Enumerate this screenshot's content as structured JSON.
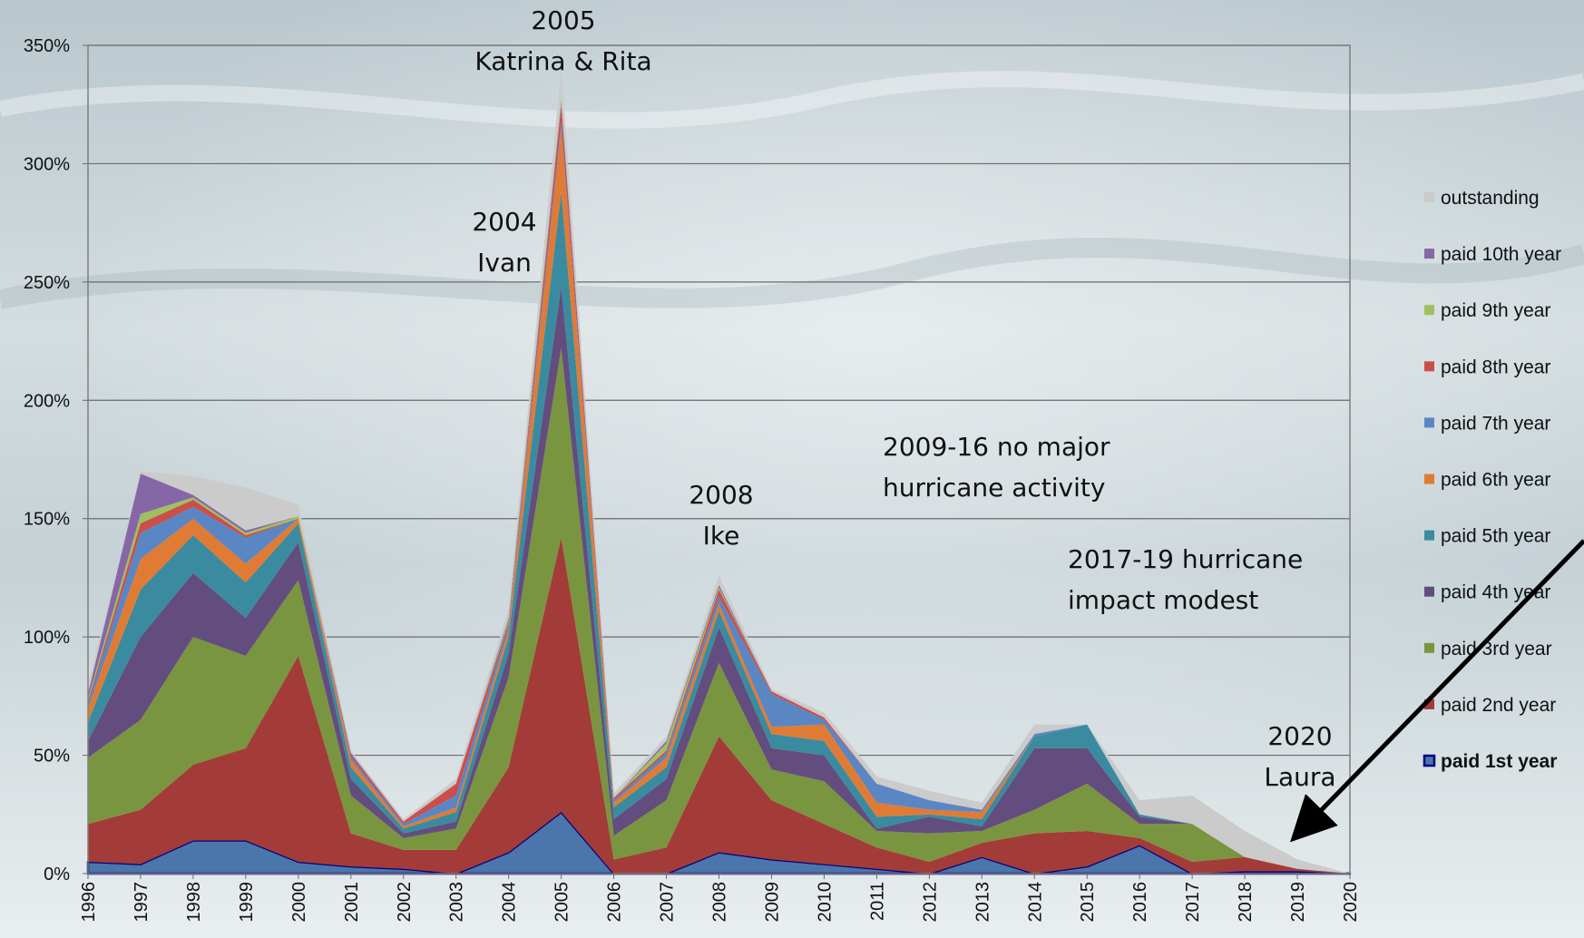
{
  "chart_data": {
    "type": "stacked-area",
    "categories": [
      "1996",
      "1997",
      "1998",
      "1999",
      "2000",
      "2001",
      "2002",
      "2003",
      "2004",
      "2005",
      "2006",
      "2007",
      "2008",
      "2009",
      "2010",
      "2011",
      "2012",
      "2013",
      "2014",
      "2015",
      "2016",
      "2017",
      "2018",
      "2019",
      "2020"
    ],
    "ylim": [
      0,
      350
    ],
    "yticks": [
      {
        "value": 0,
        "label": "0%"
      },
      {
        "value": 50,
        "label": "50%"
      },
      {
        "value": 100,
        "label": "100%"
      },
      {
        "value": 150,
        "label": "150%"
      },
      {
        "value": 200,
        "label": "200%"
      },
      {
        "value": 250,
        "label": "250%"
      },
      {
        "value": 300,
        "label": "300%"
      },
      {
        "value": 350,
        "label": "350%"
      }
    ],
    "grid": true,
    "legend": "right",
    "series": [
      {
        "name": "paid 1st year",
        "color": "#4a76ab",
        "values": [
          5,
          4,
          14,
          14,
          5,
          3,
          2,
          0,
          9,
          26,
          0,
          0,
          9,
          6,
          4,
          2,
          0,
          7,
          0,
          3,
          12,
          0,
          1,
          1,
          0
        ]
      },
      {
        "name": "paid 2nd year",
        "color": "#a33c38",
        "values": [
          16,
          23,
          32,
          39,
          87,
          14,
          8,
          10,
          36,
          116,
          6,
          11,
          49,
          25,
          17,
          9,
          5,
          6,
          17,
          15,
          3,
          5,
          6,
          1,
          0
        ]
      },
      {
        "name": "paid 3rd year",
        "color": "#7a953f",
        "values": [
          28,
          38,
          54,
          39,
          32,
          16,
          5,
          9,
          38,
          80,
          10,
          20,
          31,
          13,
          18,
          7,
          12,
          5,
          10,
          20,
          6,
          16,
          0,
          0,
          0
        ]
      },
      {
        "name": "paid 4th year",
        "color": "#634d7e",
        "values": [
          7,
          35,
          27,
          16,
          16,
          7,
          2,
          3,
          10,
          26,
          7,
          9,
          15,
          9,
          11,
          1,
          7,
          2,
          26,
          15,
          3,
          0,
          0,
          0,
          0
        ]
      },
      {
        "name": "paid 5th year",
        "color": "#3a8b9f",
        "values": [
          8,
          20,
          16,
          15,
          8,
          5,
          2,
          4,
          7,
          40,
          5,
          5,
          7,
          6,
          6,
          5,
          1,
          3,
          5,
          10,
          1,
          0,
          0,
          0,
          0
        ]
      },
      {
        "name": "paid 6th year",
        "color": "#e07b35",
        "values": [
          6,
          13,
          7,
          8,
          2,
          3,
          1,
          2,
          3,
          27,
          2,
          4,
          3,
          3,
          7,
          6,
          2,
          3,
          0,
          0,
          0,
          0,
          0,
          0,
          0
        ]
      },
      {
        "name": "paid 7th year",
        "color": "#5a86c4",
        "values": [
          2,
          11,
          5,
          11,
          0,
          1,
          1,
          5,
          2,
          3,
          1,
          2,
          3,
          14,
          2,
          8,
          4,
          1,
          1,
          0,
          0,
          0,
          0,
          0,
          0
        ]
      },
      {
        "name": "paid 8th year",
        "color": "#cc4e4b",
        "values": [
          1,
          4,
          3,
          1,
          0,
          1,
          1,
          5,
          1,
          7,
          1,
          1,
          3,
          1,
          1,
          0,
          0,
          0,
          0,
          0,
          0,
          0,
          0,
          0,
          0
        ]
      },
      {
        "name": "paid 9th year",
        "color": "#a0c060",
        "values": [
          1,
          4,
          1,
          1,
          1,
          0,
          0,
          0,
          1,
          1,
          0,
          3,
          1,
          0,
          0,
          0,
          0,
          0,
          0,
          0,
          0,
          0,
          0,
          0,
          0
        ]
      },
      {
        "name": "paid 10th year",
        "color": "#8567a8",
        "values": [
          2,
          17,
          1,
          1,
          0,
          1,
          0,
          0,
          1,
          1,
          0,
          1,
          1,
          0,
          0,
          0,
          0,
          0,
          0,
          0,
          0,
          0,
          0,
          0,
          0
        ]
      },
      {
        "name": "outstanding",
        "color": "#cbcbcb",
        "values": [
          4,
          1,
          8,
          18,
          5,
          1,
          1,
          2,
          4,
          13,
          2,
          2,
          4,
          1,
          2,
          3,
          4,
          3,
          4,
          0,
          6,
          12,
          11,
          4,
          0
        ]
      }
    ],
    "annotations": [
      {
        "lines": [
          "2005",
          "Katrina & Rita"
        ]
      },
      {
        "lines": [
          "2004",
          "Ivan"
        ]
      },
      {
        "lines": [
          "2008",
          "Ike"
        ]
      },
      {
        "lines": [
          "2009-16 no major",
          "hurricane activity"
        ]
      },
      {
        "lines": [
          "2017-19 hurricane",
          "impact modest"
        ]
      },
      {
        "lines": [
          "2020",
          "Laura"
        ]
      }
    ]
  }
}
